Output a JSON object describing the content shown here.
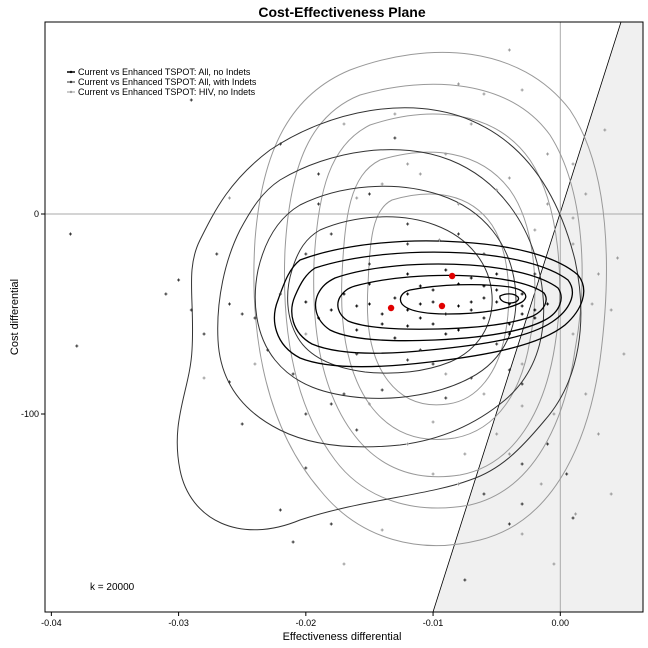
{
  "chart_data": {
    "type": "scatter",
    "title": "Cost-Effectiveness Plane",
    "xlabel": "Effectiveness differential",
    "ylabel": "Cost differential",
    "xlim": [
      -0.0405,
      0.0065
    ],
    "ylim": [
      -199,
      96
    ],
    "x_ticks": [
      {
        "value": -0.04,
        "label": "-0.04"
      },
      {
        "value": -0.03,
        "label": "-0.03"
      },
      {
        "value": -0.02,
        "label": "-0.02"
      },
      {
        "value": -0.01,
        "label": "-0.01"
      },
      {
        "value": 0.0,
        "label": "0.00"
      }
    ],
    "y_ticks": [
      {
        "value": 0,
        "label": "0"
      },
      {
        "value": -100,
        "label": "-100"
      }
    ],
    "annotation": "k = 20000",
    "wtp_threshold": 20000,
    "legend": {
      "placement": "top-left",
      "entries": [
        {
          "label": "Current vs Enhanced TSPOT: All, no Indets",
          "color": "#000000"
        },
        {
          "label": "Current vs Enhanced TSPOT: All, with Indets",
          "color": "#333333"
        },
        {
          "label": "Current vs Enhanced TSPOT: HIV, no Indets",
          "color": "#999999"
        }
      ]
    },
    "series": [
      {
        "name": "Current vs Enhanced TSPOT: All, no Indets",
        "color": "#000000",
        "mean": [
          -0.0085,
          -31
        ],
        "points": [
          [
            -0.015,
            -45
          ],
          [
            -0.012,
            -40
          ],
          [
            -0.01,
            -38
          ],
          [
            -0.008,
            -35
          ],
          [
            -0.006,
            -42
          ],
          [
            -0.004,
            -45
          ],
          [
            -0.002,
            -48
          ],
          [
            -0.011,
            -52
          ],
          [
            -0.014,
            -55
          ],
          [
            -0.009,
            -50
          ],
          [
            -0.007,
            -44
          ],
          [
            -0.005,
            -38
          ],
          [
            -0.003,
            -40
          ],
          [
            -0.012,
            -30
          ],
          [
            -0.016,
            -58
          ],
          [
            -0.018,
            -48
          ],
          [
            -0.013,
            -62
          ],
          [
            -0.008,
            -58
          ],
          [
            -0.006,
            -52
          ],
          [
            -0.004,
            -55
          ],
          [
            -0.01,
            -44
          ],
          [
            -0.012,
            -48
          ],
          [
            -0.015,
            -35
          ],
          [
            -0.017,
            -40
          ],
          [
            -0.009,
            -28
          ],
          [
            -0.007,
            -32
          ],
          [
            -0.005,
            -30
          ],
          [
            -0.003,
            -50
          ],
          [
            -0.001,
            -45
          ],
          [
            -0.002,
            -52
          ],
          [
            -0.011,
            -36
          ],
          [
            -0.013,
            -42
          ],
          [
            -0.008,
            -46
          ],
          [
            -0.006,
            -36
          ],
          [
            -0.009,
            -60
          ],
          [
            -0.019,
            -52
          ],
          [
            -0.02,
            -44
          ],
          [
            -0.014,
            -50
          ],
          [
            -0.01,
            -55
          ],
          [
            -0.004,
            -60
          ],
          [
            -0.007,
            -48
          ],
          [
            -0.003,
            -46
          ],
          [
            -0.011,
            -45
          ],
          [
            -0.005,
            -44
          ],
          [
            -0.016,
            -46
          ],
          [
            -0.012,
            -56
          ]
        ]
      },
      {
        "name": "Current vs Enhanced TSPOT: All, with Indets",
        "color": "#333333",
        "mean": [
          -0.0133,
          -47
        ],
        "points": [
          [
            -0.02,
            -20
          ],
          [
            -0.018,
            -10
          ],
          [
            -0.022,
            -40
          ],
          [
            -0.016,
            -70
          ],
          [
            -0.01,
            -75
          ],
          [
            -0.005,
            -65
          ],
          [
            -0.025,
            -50
          ],
          [
            -0.028,
            -60
          ],
          [
            -0.021,
            -80
          ],
          [
            -0.015,
            -25
          ],
          [
            -0.012,
            -15
          ],
          [
            -0.008,
            -10
          ],
          [
            -0.019,
            20
          ],
          [
            -0.022,
            35
          ],
          [
            -0.03,
            -33
          ],
          [
            -0.031,
            -40
          ],
          [
            -0.026,
            -84
          ],
          [
            -0.024,
            -52
          ],
          [
            -0.014,
            -88
          ],
          [
            -0.009,
            -92
          ],
          [
            -0.003,
            -85
          ],
          [
            -0.017,
            -90
          ],
          [
            -0.023,
            -68
          ],
          [
            -0.029,
            -48
          ],
          [
            -0.02,
            -100
          ],
          [
            -0.025,
            -105
          ],
          [
            -0.018,
            -95
          ],
          [
            -0.012,
            -5
          ],
          [
            -0.006,
            -20
          ],
          [
            -0.002,
            -30
          ],
          [
            -0.027,
            -20
          ],
          [
            -0.019,
            5
          ],
          [
            -0.015,
            10
          ],
          [
            -0.011,
            -68
          ],
          [
            -0.007,
            -82
          ],
          [
            -0.004,
            -78
          ],
          [
            -0.0385,
            -10
          ],
          [
            -0.038,
            -66
          ],
          [
            -0.029,
            57
          ],
          [
            -0.013,
            38
          ],
          [
            -0.016,
            -108
          ],
          [
            -0.02,
            -127
          ],
          [
            -0.021,
            -164
          ],
          [
            -0.018,
            -155
          ],
          [
            -0.022,
            -148
          ],
          [
            -0.001,
            -115
          ],
          [
            -0.003,
            -125
          ],
          [
            0.0005,
            -130
          ],
          [
            -0.003,
            -145
          ],
          [
            -0.006,
            -140
          ],
          [
            -0.004,
            -155
          ],
          [
            -0.0075,
            -183
          ],
          [
            0.001,
            -152
          ],
          [
            -0.012,
            -73
          ],
          [
            -0.026,
            -45
          ]
        ]
      },
      {
        "name": "Current vs Enhanced TSPOT: HIV, no Indets",
        "color": "#999999",
        "mean": [
          -0.0093,
          -46
        ],
        "points": [
          [
            -0.006,
            60
          ],
          [
            -0.004,
            82
          ],
          [
            -0.001,
            30
          ],
          [
            0.002,
            10
          ],
          [
            -0.005,
            12
          ],
          [
            -0.009,
            30
          ],
          [
            -0.013,
            50
          ],
          [
            -0.017,
            45
          ],
          [
            -0.002,
            -8
          ],
          [
            0.001,
            -15
          ],
          [
            0.003,
            -30
          ],
          [
            0.004,
            -48
          ],
          [
            0.005,
            -70
          ],
          [
            0.002,
            -90
          ],
          [
            0.003,
            -110
          ],
          [
            0.004,
            -140
          ],
          [
            -0.0005,
            -100
          ],
          [
            -0.004,
            -120
          ],
          [
            -0.008,
            -135
          ],
          [
            -0.012,
            -115
          ],
          [
            -0.015,
            -95
          ],
          [
            -0.009,
            -80
          ],
          [
            -0.006,
            -90
          ],
          [
            -0.003,
            -75
          ],
          [
            0.001,
            -60
          ],
          [
            0.0025,
            -45
          ],
          [
            -0.007,
            45
          ],
          [
            -0.011,
            20
          ],
          [
            -0.014,
            15
          ],
          [
            -0.016,
            8
          ],
          [
            -0.008,
            5
          ],
          [
            -0.004,
            18
          ],
          [
            -0.001,
            5
          ],
          [
            0.001,
            -2
          ],
          [
            -0.02,
            -60
          ],
          [
            -0.024,
            -75
          ],
          [
            -0.028,
            -82
          ],
          [
            -0.01,
            -130
          ],
          [
            -0.005,
            -110
          ],
          [
            -0.0015,
            -135
          ],
          [
            0.0012,
            -150
          ],
          [
            -0.003,
            -160
          ],
          [
            -0.017,
            -175
          ],
          [
            -0.014,
            -158
          ],
          [
            0.0045,
            -22
          ],
          [
            -0.0095,
            -13
          ],
          [
            -0.0075,
            -120
          ],
          [
            -0.0005,
            -175
          ],
          [
            -0.012,
            25
          ],
          [
            0.0035,
            42
          ],
          [
            -0.01,
            -104
          ],
          [
            -0.003,
            -96
          ],
          [
            -0.026,
            8
          ],
          [
            0.001,
            25
          ],
          [
            -0.008,
            65
          ],
          [
            -0.003,
            62
          ]
        ]
      }
    ]
  }
}
